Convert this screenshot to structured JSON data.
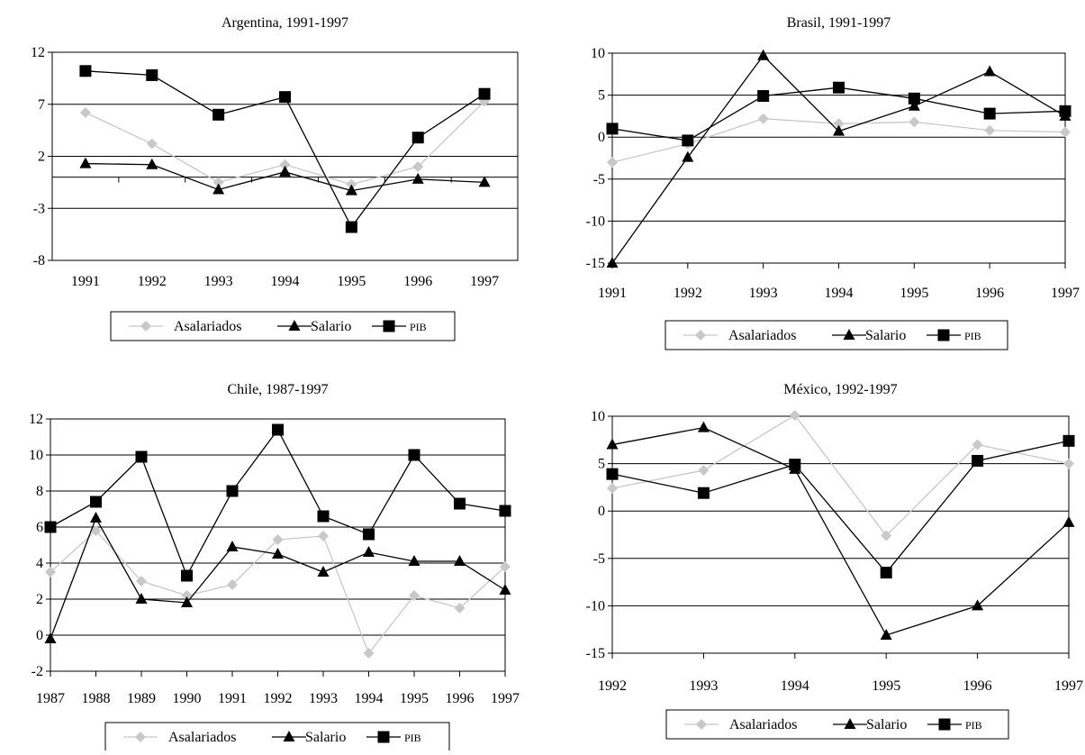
{
  "chart_data": [
    {
      "type": "line",
      "title": "Argentina, 1991-1997",
      "categories": [
        "1991",
        "1992",
        "1993",
        "1994",
        "1995",
        "1996",
        "1997"
      ],
      "ylim": [
        -8,
        12
      ],
      "yticks": [
        -8,
        -3,
        2,
        7,
        12
      ],
      "grid": true,
      "zero_line": true,
      "legend_position": "bottom",
      "series": [
        {
          "name": "Asalariados",
          "marker": "diamond",
          "color": "#c8c8c8",
          "values": [
            6.2,
            3.2,
            -0.5,
            1.2,
            -0.7,
            1.0,
            7.3
          ]
        },
        {
          "name": "Salario",
          "marker": "triangle",
          "color": "#000000",
          "values": [
            1.3,
            1.2,
            -1.2,
            0.5,
            -1.3,
            -0.2,
            -0.5
          ]
        },
        {
          "name": "PIB",
          "marker": "square",
          "color": "#000000",
          "values": [
            10.2,
            9.8,
            6.0,
            7.7,
            -4.8,
            3.8,
            8.0
          ]
        }
      ]
    },
    {
      "type": "line",
      "title": "Brasil, 1991-1997",
      "categories": [
        "1991",
        "1992",
        "1993",
        "1994",
        "1995",
        "1996",
        "1997"
      ],
      "ylim": [
        -15,
        10
      ],
      "yticks": [
        -15,
        -10,
        -5,
        0,
        5,
        10
      ],
      "grid": true,
      "legend_position": "bottom",
      "series": [
        {
          "name": "Asalariados",
          "marker": "diamond",
          "color": "#c8c8c8",
          "values": [
            -3.0,
            -0.8,
            2.2,
            1.6,
            1.8,
            0.8,
            0.6
          ]
        },
        {
          "name": "Salario",
          "marker": "triangle",
          "color": "#000000",
          "values": [
            -15.0,
            -2.4,
            9.7,
            0.7,
            3.7,
            7.8,
            2.5
          ]
        },
        {
          "name": "PIB",
          "marker": "square",
          "color": "#000000",
          "values": [
            1.0,
            -0.4,
            4.9,
            5.9,
            4.6,
            2.8,
            3.1
          ]
        }
      ]
    },
    {
      "type": "line",
      "title": "Chile, 1987-1997",
      "categories": [
        "1987",
        "1988",
        "1989",
        "1990",
        "1991",
        "1992",
        "1993",
        "1994",
        "1995",
        "1996",
        "1997"
      ],
      "ylim": [
        -2,
        12
      ],
      "yticks": [
        -2,
        0,
        2,
        4,
        6,
        8,
        10,
        12
      ],
      "grid": true,
      "legend_position": "bottom",
      "series": [
        {
          "name": "Asalariados",
          "marker": "diamond",
          "color": "#c8c8c8",
          "values": [
            3.5,
            5.8,
            3.0,
            2.2,
            2.8,
            5.3,
            5.5,
            -1.0,
            2.2,
            1.5,
            3.8
          ]
        },
        {
          "name": "Salario",
          "marker": "triangle",
          "color": "#000000",
          "values": [
            -0.2,
            6.5,
            2.0,
            1.8,
            4.9,
            4.5,
            3.5,
            4.6,
            4.1,
            4.1,
            2.5
          ]
        },
        {
          "name": "PIB",
          "marker": "square",
          "color": "#000000",
          "values": [
            6.0,
            7.4,
            9.9,
            3.3,
            8.0,
            11.4,
            6.6,
            5.6,
            10.0,
            7.3,
            6.9
          ]
        }
      ]
    },
    {
      "type": "line",
      "title": "México, 1992-1997",
      "categories": [
        "1992",
        "1993",
        "1994",
        "1995",
        "1996",
        "1997"
      ],
      "ylim": [
        -15,
        10
      ],
      "yticks": [
        -15,
        -10,
        -5,
        0,
        5,
        10
      ],
      "grid": true,
      "legend_position": "bottom",
      "series": [
        {
          "name": "Asalariados",
          "marker": "diamond",
          "color": "#c8c8c8",
          "values": [
            2.4,
            4.3,
            10.1,
            -2.6,
            7.0,
            5.0
          ]
        },
        {
          "name": "Salario",
          "marker": "triangle",
          "color": "#000000",
          "values": [
            7.0,
            8.8,
            4.4,
            -13.1,
            -10.0,
            -1.2
          ]
        },
        {
          "name": "PIB",
          "marker": "square",
          "color": "#000000",
          "values": [
            3.9,
            1.9,
            4.9,
            -6.5,
            5.3,
            7.4
          ]
        }
      ]
    }
  ]
}
